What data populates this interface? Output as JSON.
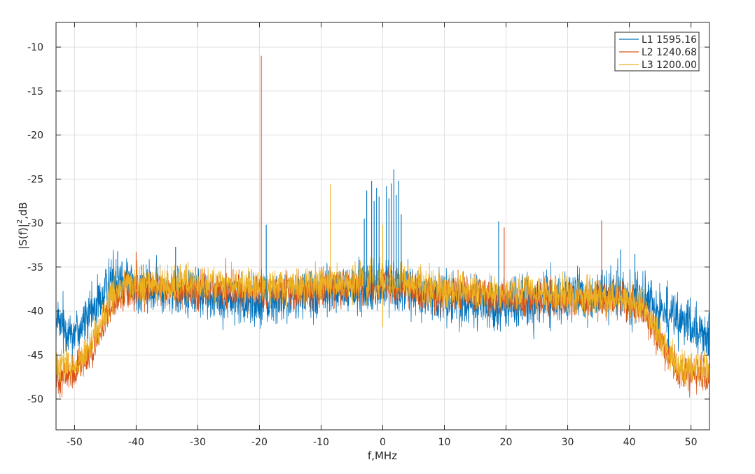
{
  "chart_data": {
    "type": "line",
    "title": "",
    "xlabel": "f,MHz",
    "ylabel": "|S(f)|",
    "ylabel_sup": "2",
    "ylabel_suffix": ",dB",
    "xlim": [
      -53,
      53
    ],
    "ylim": [
      -53.5,
      -7.2
    ],
    "x_ticks": [
      -50,
      -40,
      -30,
      -20,
      -10,
      0,
      10,
      20,
      30,
      40,
      50
    ],
    "x_tick_labels": [
      "-50",
      "-40",
      "-30",
      "-20",
      "-10",
      "0",
      "10",
      "20",
      "30",
      "40",
      "50"
    ],
    "y_ticks": [
      -10,
      -15,
      -20,
      -25,
      -30,
      -35,
      -40,
      -45,
      -50
    ],
    "y_tick_labels": [
      "-10",
      "-15",
      "-20",
      "-25",
      "-30",
      "-35",
      "-40",
      "-45",
      "-50"
    ],
    "grid": true,
    "legend_position": "top-right",
    "series": [
      {
        "name": "L1 1595.16",
        "color": "#0072BD",
        "baseline_x": [
          -53,
          -50,
          -48,
          -46,
          -44,
          -42,
          -40,
          -36,
          -30,
          -20,
          -10,
          0,
          10,
          20,
          30,
          38,
          42,
          45,
          47,
          50,
          53
        ],
        "baseline_y": [
          -41.5,
          -42.5,
          -41,
          -39,
          -36.5,
          -36,
          -37.5,
          -37.5,
          -38,
          -39,
          -38,
          -37,
          -38.5,
          -39.5,
          -38.5,
          -38.2,
          -38.5,
          -40,
          -40.5,
          -42,
          -43
        ],
        "noise_dB": 1.6,
        "spikes": [
          {
            "x": -18.9,
            "y": -30.2
          },
          {
            "x": -3.0,
            "y": -29.5
          },
          {
            "x": -2.6,
            "y": -26.3
          },
          {
            "x": -1.8,
            "y": -25.2
          },
          {
            "x": -1.4,
            "y": -27.5
          },
          {
            "x": -1.0,
            "y": -26.0
          },
          {
            "x": -0.6,
            "y": -27.0
          },
          {
            "x": 0.6,
            "y": -25.8
          },
          {
            "x": 1.0,
            "y": -27.2
          },
          {
            "x": 1.4,
            "y": -25.5
          },
          {
            "x": 1.8,
            "y": -23.9
          },
          {
            "x": 2.2,
            "y": -26.8
          },
          {
            "x": 2.6,
            "y": -25.2
          },
          {
            "x": 3.0,
            "y": -29.0
          },
          {
            "x": 18.8,
            "y": -29.8
          },
          {
            "x": 38.6,
            "y": -33.0
          },
          {
            "x": 40.9,
            "y": -33.5
          },
          {
            "x": -33.6,
            "y": -32.7
          },
          {
            "x": -43.0,
            "y": -33.2
          }
        ]
      },
      {
        "name": "L2 1240.68",
        "color": "#D95319",
        "baseline_x": [
          -53,
          -50,
          -48,
          -46,
          -44,
          -42,
          -40,
          -30,
          -20,
          -10,
          0,
          10,
          20,
          30,
          40,
          42,
          44,
          46,
          48,
          50,
          53
        ],
        "baseline_y": [
          -47.5,
          -47.2,
          -45.5,
          -43,
          -39.5,
          -38,
          -37.5,
          -37.5,
          -38,
          -37.5,
          -37,
          -38,
          -38.5,
          -38.5,
          -39,
          -40,
          -42,
          -45,
          -47,
          -47.5,
          -47.5
        ],
        "noise_dB": 1.1,
        "spikes": [
          {
            "x": -19.7,
            "y": -11.0
          },
          {
            "x": 19.7,
            "y": -30.5
          },
          {
            "x": 35.5,
            "y": -29.7
          },
          {
            "x": -40.0,
            "y": -33.3
          },
          {
            "x": 0.0,
            "y": -32.0
          }
        ]
      },
      {
        "name": "L3 1200.00",
        "color": "#EDB120",
        "baseline_x": [
          -53,
          -50,
          -48,
          -46,
          -44,
          -42,
          -40,
          -30,
          -20,
          -10,
          0,
          10,
          20,
          30,
          40,
          42,
          44,
          46,
          48,
          50,
          53
        ],
        "baseline_y": [
          -46.5,
          -46.2,
          -44.5,
          -42,
          -38.5,
          -37.2,
          -37,
          -37,
          -37.2,
          -37,
          -36.5,
          -37.5,
          -38,
          -38.2,
          -38.5,
          -39.5,
          -41.5,
          -44.5,
          -46.2,
          -46.5,
          -46.5
        ],
        "noise_dB": 1.1,
        "spikes": [
          {
            "x": -8.5,
            "y": -25.6
          },
          {
            "x": 0.0,
            "y": -30.2
          },
          {
            "x": 0.0,
            "y": -41.8
          }
        ]
      }
    ]
  }
}
